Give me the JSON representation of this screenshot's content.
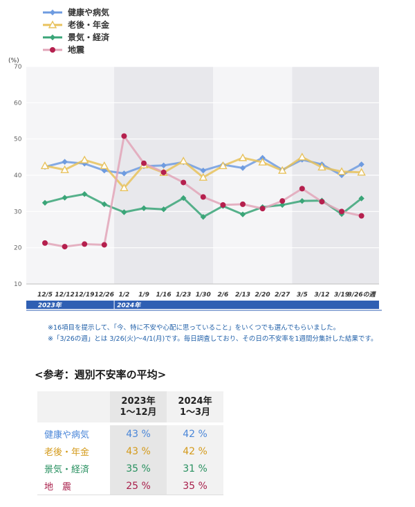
{
  "chart_data": {
    "type": "line",
    "unit_label": "(%)",
    "ylim": [
      10,
      70
    ],
    "yticks": [
      10,
      20,
      30,
      40,
      50,
      60,
      70
    ],
    "categories": [
      "12/5",
      "12/12",
      "12/19",
      "12/26",
      "1/2",
      "1/9",
      "1/16",
      "1/23",
      "1/30",
      "2/6",
      "2/13",
      "2/20",
      "2/27",
      "3/5",
      "3/12",
      "3/19",
      "3/26の週"
    ],
    "year_labels": [
      {
        "label": "2023年",
        "start_index": 0
      },
      {
        "label": "2024年",
        "start_index": 4
      }
    ],
    "shaded_bands": [
      [
        4,
        8
      ],
      [
        13,
        16
      ]
    ],
    "grid": true,
    "legend_position": "top-left",
    "series": [
      {
        "name": "健康や病気",
        "color": "#6e9be0",
        "marker": "diamond",
        "values": [
          42.3,
          43.7,
          43.2,
          41.3,
          40.5,
          42.5,
          42.7,
          43.6,
          41.3,
          42.9,
          42.0,
          44.8,
          41.5,
          44.3,
          43.0,
          40.0,
          43.0
        ]
      },
      {
        "name": "老後・年金",
        "color": "#e8c25c",
        "marker": "triangle",
        "values": [
          42.6,
          41.5,
          44.2,
          42.6,
          36.5,
          42.8,
          40.7,
          43.9,
          39.4,
          42.6,
          44.8,
          43.6,
          41.3,
          45.0,
          42.2,
          41.0,
          40.8
        ]
      },
      {
        "name": "景気・経済",
        "color": "#3aa578",
        "marker": "diamond",
        "values": [
          32.4,
          33.8,
          34.8,
          32.0,
          29.8,
          30.9,
          30.6,
          33.7,
          28.5,
          31.5,
          29.2,
          31.2,
          31.8,
          32.9,
          33.0,
          29.3,
          33.6
        ]
      },
      {
        "name": "地震",
        "color": "#b5204e",
        "line_color": "#e2a4b8",
        "marker": "circle",
        "values": [
          21.3,
          20.3,
          21.0,
          20.8,
          50.8,
          43.3,
          40.8,
          38.0,
          34.0,
          31.8,
          32.0,
          30.8,
          32.9,
          36.3,
          32.7,
          30.0,
          28.8
        ]
      }
    ]
  },
  "notes": [
    "※16項目を提示して、「今、特に不安や心配に思っていること」をいくつでも選んでもらいました。",
    "※「3/26の週」とは 3/26(火)～4/1(月)です。毎日調査しており、その日の不安率を1週間分集計した結果です。"
  ],
  "reference": {
    "title": "<参考：週別不安率の平均>",
    "columns": [
      {
        "line1": "2023年",
        "line2": "1～12月"
      },
      {
        "line1": "2024年",
        "line2": "1～3月"
      }
    ],
    "rows": [
      {
        "label": "健康や病気",
        "color": "#4a86d8",
        "v1": "43 %",
        "v2": "42 %"
      },
      {
        "label": "老後・年金",
        "color": "#d49a1a",
        "v1": "43 %",
        "v2": "42 %"
      },
      {
        "label": "景気・経済",
        "color": "#27905f",
        "v1": "35 %",
        "v2": "31 %"
      },
      {
        "label": "地　震",
        "color": "#a81e4a",
        "v1": "25 %",
        "v2": "35 %"
      }
    ]
  }
}
